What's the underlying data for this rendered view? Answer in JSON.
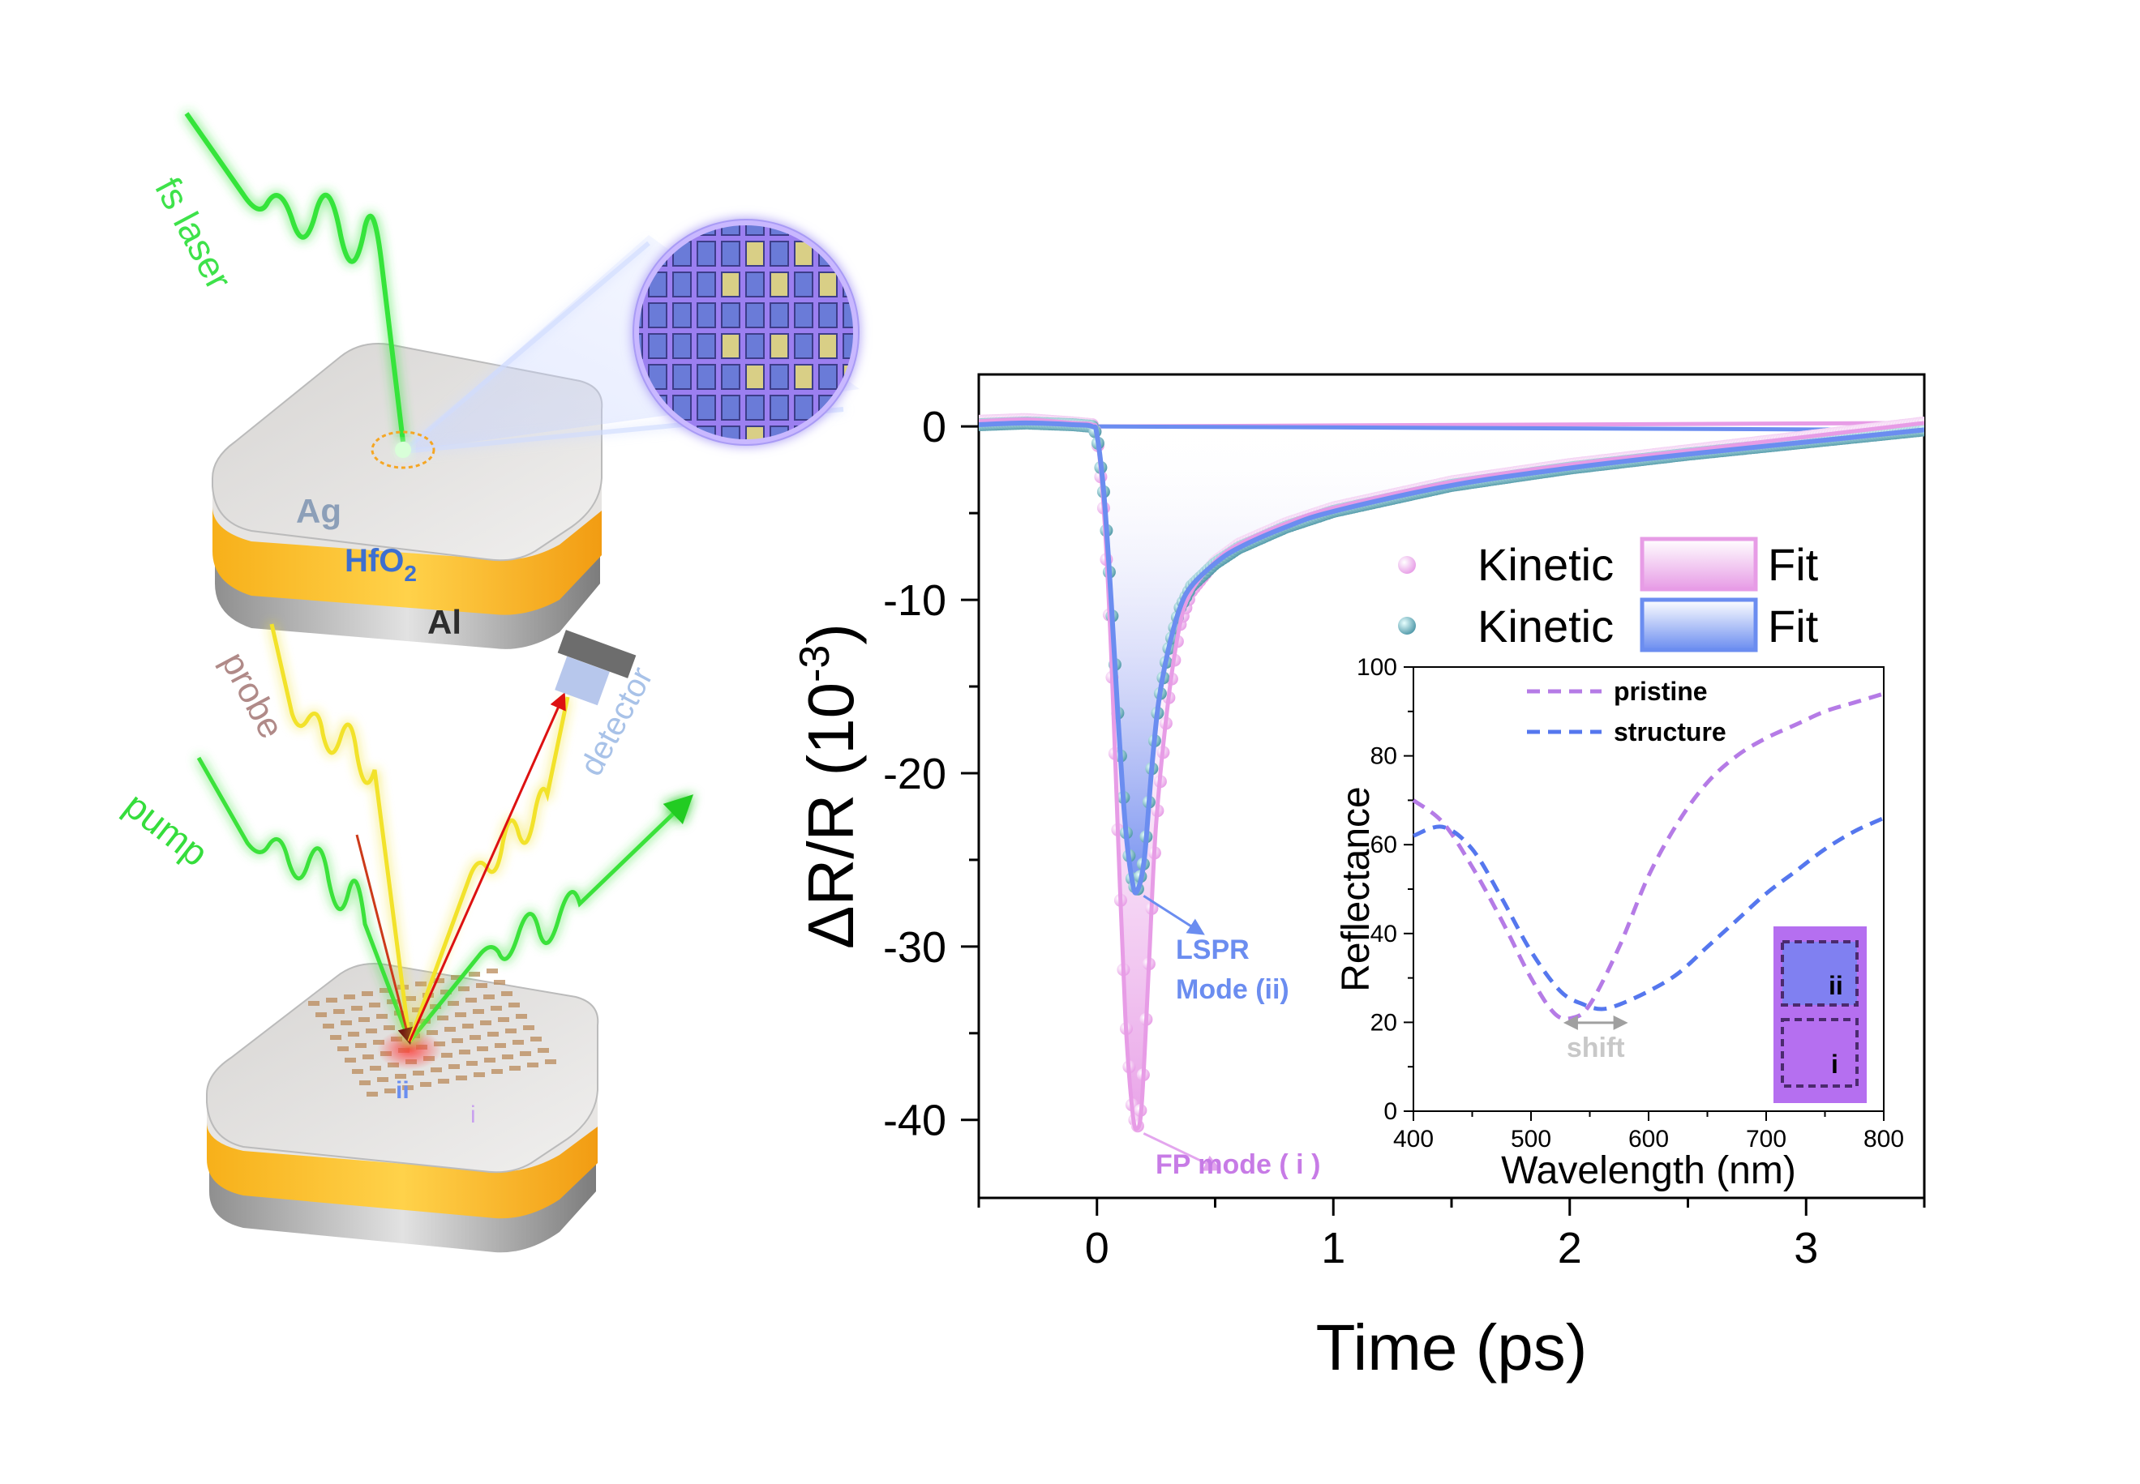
{
  "colors": {
    "pink": "#e79ce6",
    "pink_dark": "#c77be6",
    "blue": "#6b8df0",
    "teal": "#5ea9b6",
    "green": "#2fe03a",
    "yellow": "#f2e22a",
    "gold": "#f5b21a",
    "silver": "#c9c9c9",
    "grid": "#a8a8ff",
    "arrow_red": "#cc1a1a",
    "arrow_dark": "#6b1010",
    "dashed_purple": "#b57be6",
    "dashed_blue": "#5577ee",
    "shift_gray": "#bdbdbd"
  },
  "schematic": {
    "labels": {
      "fs_laser": "fs laser",
      "ag": "Ag",
      "hfo2": "HfO",
      "hfo2_sub": "2",
      "al": "Al",
      "probe": "probe",
      "detector": "detector",
      "pump": "pump",
      "region_ii": "ii",
      "region_i": "i"
    },
    "icons": [
      "laser-spot-icon",
      "detector-icon",
      "magnified-grating-icon"
    ]
  },
  "chart_data": [
    {
      "id": "main",
      "type": "scatter",
      "title": "",
      "xlabel": "Time (ps)",
      "ylabel": "ΔR/R (10",
      "ylabel_sup": "-3",
      "ylabel_close": ")",
      "xlim": [
        -0.5,
        3.5
      ],
      "ylim": [
        -44.5,
        3
      ],
      "xticks": [
        0,
        1,
        2,
        3
      ],
      "yticks": [
        0,
        -10,
        -20,
        -30,
        -40
      ],
      "grid": false,
      "legend_position": "top-right",
      "legend": [
        {
          "marker_label": "Kinetic",
          "fit_label": "Fit",
          "color": "#e79ce6"
        },
        {
          "marker_label": "Kinetic",
          "fit_label": "Fit",
          "color": "#6b8df0"
        }
      ],
      "series": [
        {
          "name": "FP mode (i)",
          "marker_color": "#e79ce6",
          "fit_color": "#e79ce6",
          "x": [
            -0.5,
            -0.3,
            -0.1,
            -0.02,
            0.0,
            0.03,
            0.06,
            0.09,
            0.12,
            0.15,
            0.17,
            0.19,
            0.22,
            0.25,
            0.3,
            0.35,
            0.4,
            0.5,
            0.6,
            0.8,
            1.0,
            1.5,
            2.0,
            2.5,
            3.0,
            3.5
          ],
          "y": [
            0.3,
            0.4,
            0.2,
            0.1,
            -0.5,
            -5,
            -13,
            -24,
            -34,
            -39.5,
            -40.5,
            -39,
            -31,
            -23,
            -16,
            -11.5,
            -9.5,
            -7.8,
            -6.8,
            -5.6,
            -4.7,
            -3.2,
            -2.2,
            -1.4,
            -0.6,
            0.2
          ]
        },
        {
          "name": "LSPR Mode (ii)",
          "marker_color": "#5ea9b6",
          "fit_color": "#6b8df0",
          "x": [
            -0.5,
            -0.3,
            -0.1,
            -0.02,
            0.0,
            0.03,
            0.06,
            0.09,
            0.12,
            0.15,
            0.17,
            0.2,
            0.23,
            0.26,
            0.3,
            0.35,
            0.4,
            0.5,
            0.6,
            0.8,
            1.0,
            1.5,
            2.0,
            2.5,
            3.0,
            3.5
          ],
          "y": [
            0.1,
            0.2,
            0.1,
            0.0,
            -0.5,
            -4,
            -10,
            -17,
            -23,
            -26.3,
            -26.8,
            -25,
            -20,
            -16,
            -13,
            -10.5,
            -9.2,
            -7.9,
            -7.0,
            -5.8,
            -4.9,
            -3.4,
            -2.4,
            -1.6,
            -0.9,
            -0.2
          ]
        }
      ],
      "annotations": [
        {
          "text": "LSPR",
          "text2": "Mode (ii)",
          "x": 0.17,
          "y": -26.8,
          "color": "#6b8df0"
        },
        {
          "text": "FP mode ( i )",
          "x": 0.17,
          "y": -40.5,
          "color": "#c77be6"
        }
      ]
    },
    {
      "id": "inset",
      "type": "line",
      "xlabel": "Wavelength (nm)",
      "ylabel": "Reflectance",
      "xlim": [
        400,
        800
      ],
      "ylim": [
        0,
        100
      ],
      "xticks": [
        400,
        500,
        600,
        700,
        800
      ],
      "yticks": [
        0,
        20,
        40,
        60,
        80,
        100
      ],
      "grid": false,
      "legend_position": "top-left",
      "series": [
        {
          "name": "pristine",
          "style": "dashed",
          "color": "#b57be6",
          "x": [
            400,
            425,
            450,
            475,
            500,
            520,
            535,
            550,
            575,
            600,
            625,
            650,
            675,
            700,
            725,
            750,
            775,
            800
          ],
          "y": [
            70,
            65,
            55,
            43,
            30,
            22,
            21,
            24,
            37,
            53,
            65,
            74,
            80,
            84,
            87,
            90,
            92,
            94
          ]
        },
        {
          "name": "structure",
          "style": "dashed",
          "color": "#5577ee",
          "x": [
            400,
            425,
            450,
            475,
            500,
            525,
            545,
            560,
            575,
            600,
            625,
            650,
            675,
            700,
            725,
            750,
            775,
            800
          ],
          "y": [
            62,
            64,
            59,
            48,
            36,
            27,
            24,
            23,
            24,
            27,
            31,
            37,
            43,
            49,
            54,
            59,
            63,
            66
          ]
        }
      ],
      "annotation": {
        "text": "shift",
        "x_from": 530,
        "x_to": 580,
        "y": 21
      },
      "inset_image_labels": {
        "ii": "ii",
        "i": "i"
      }
    }
  ]
}
